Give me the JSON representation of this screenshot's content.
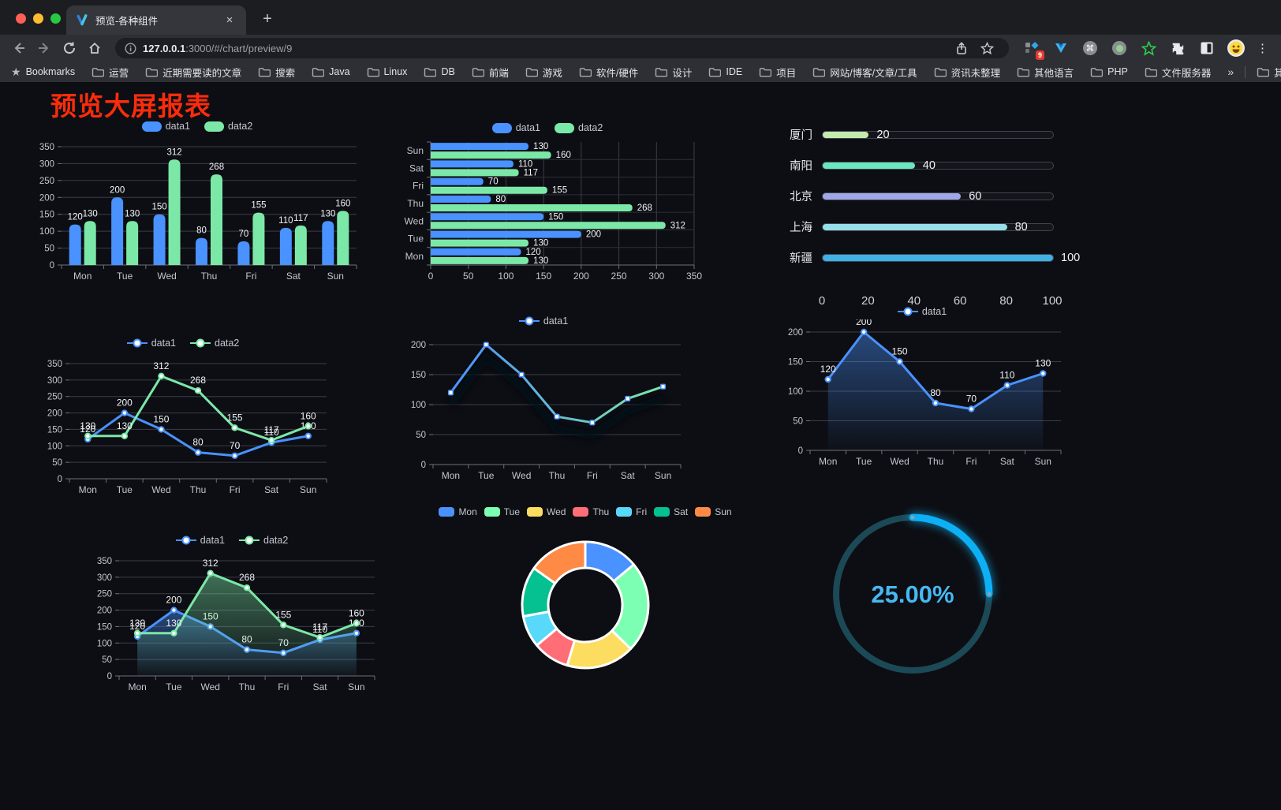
{
  "browser": {
    "tab_title": "预览-各种组件",
    "tab_close": "×",
    "new_tab": "+",
    "url_host": "127.0.0.1",
    "url_rest": ":3000/#/chart/preview/9",
    "extension_badge": "9",
    "bookmarks_label": "Bookmarks",
    "bookmarks": [
      "运营",
      "近期需要读的文章",
      "搜索",
      "Java",
      "Linux",
      "DB",
      "前端",
      "游戏",
      "软件/硬件",
      "设计",
      "IDE",
      "项目",
      "网站/博客/文章/工具",
      "资讯未整理",
      "其他语言",
      "PHP",
      "文件服务器"
    ],
    "overflow_chevron": "»",
    "other_bookmarks": "其他书签",
    "menu_dots": "⋮"
  },
  "page": {
    "title": "预览大屏报表",
    "title_color": "#fa2c0c"
  },
  "chart_data": [
    {
      "id": "bar-vertical",
      "type": "bar",
      "categories": [
        "Mon",
        "Tue",
        "Wed",
        "Thu",
        "Fri",
        "Sat",
        "Sun"
      ],
      "series": [
        {
          "name": "data1",
          "color": "#4992ff",
          "values": [
            120,
            200,
            150,
            80,
            70,
            110,
            130
          ]
        },
        {
          "name": "data2",
          "color": "#7ce8a8",
          "values": [
            130,
            130,
            312,
            268,
            155,
            117,
            160
          ]
        }
      ],
      "ylim": [
        0,
        350
      ],
      "yticks": [
        0,
        50,
        100,
        150,
        200,
        250,
        300,
        350
      ],
      "labels": true,
      "legend_position": "top",
      "grid": true
    },
    {
      "id": "bar-horizontal",
      "type": "hbar",
      "categories": [
        "Mon",
        "Tue",
        "Wed",
        "Thu",
        "Fri",
        "Sat",
        "Sun"
      ],
      "series": [
        {
          "name": "data1",
          "color": "#4992ff",
          "values": [
            120,
            200,
            150,
            80,
            70,
            110,
            130
          ]
        },
        {
          "name": "data2",
          "color": "#7ce8a8",
          "values": [
            130,
            130,
            312,
            268,
            155,
            117,
            160
          ]
        }
      ],
      "xlim": [
        0,
        350
      ],
      "xticks": [
        0,
        50,
        100,
        150,
        200,
        250,
        300,
        350
      ],
      "labels": true,
      "legend_position": "top",
      "grid": true
    },
    {
      "id": "city-progress",
      "type": "progress",
      "items": [
        {
          "label": "厦门",
          "value": 20,
          "color": "#c4ebad"
        },
        {
          "label": "南阳",
          "value": 40,
          "color": "#6be6c1"
        },
        {
          "label": "北京",
          "value": 60,
          "color": "#a0a7e6"
        },
        {
          "label": "上海",
          "value": 80,
          "color": "#96dee8"
        },
        {
          "label": "新疆",
          "value": 100,
          "color": "#3fb1e3"
        }
      ],
      "max": 100,
      "ticks": [
        0,
        20,
        40,
        60,
        80,
        100
      ]
    },
    {
      "id": "line-dual",
      "type": "line",
      "categories": [
        "Mon",
        "Tue",
        "Wed",
        "Thu",
        "Fri",
        "Sat",
        "Sun"
      ],
      "series": [
        {
          "name": "data1",
          "color": "#4992ff",
          "values": [
            120,
            200,
            150,
            80,
            70,
            110,
            130
          ]
        },
        {
          "name": "data2",
          "color": "#7ce8a8",
          "values": [
            130,
            130,
            312,
            268,
            155,
            117,
            160
          ]
        }
      ],
      "ylim": [
        0,
        350
      ],
      "yticks": [
        0,
        50,
        100,
        150,
        200,
        250,
        300,
        350
      ],
      "labels": true,
      "legend_position": "top",
      "grid": true
    },
    {
      "id": "line-gradient",
      "type": "line",
      "categories": [
        "Mon",
        "Tue",
        "Wed",
        "Thu",
        "Fri",
        "Sat",
        "Sun"
      ],
      "series": [
        {
          "name": "data1",
          "color": "#4992ff",
          "color_end": "#7ce8a8",
          "symbol": "rect",
          "shadow": true,
          "values": [
            120,
            200,
            150,
            80,
            70,
            110,
            130
          ]
        }
      ],
      "ylim": [
        0,
        200
      ],
      "yticks": [
        0,
        50,
        100,
        150,
        200
      ],
      "labels": false,
      "legend_position": "top",
      "grid": true
    },
    {
      "id": "line-area",
      "type": "line",
      "categories": [
        "Mon",
        "Tue",
        "Wed",
        "Thu",
        "Fri",
        "Sat",
        "Sun"
      ],
      "series": [
        {
          "name": "data1",
          "color": "#4992ff",
          "area": true,
          "values": [
            120,
            200,
            150,
            80,
            70,
            110,
            130
          ]
        }
      ],
      "ylim": [
        0,
        200
      ],
      "yticks": [
        0,
        50,
        100,
        150,
        200
      ],
      "labels": true,
      "legend_position": "top",
      "grid": true
    },
    {
      "id": "line-dual-area",
      "type": "line",
      "categories": [
        "Mon",
        "Tue",
        "Wed",
        "Thu",
        "Fri",
        "Sat",
        "Sun"
      ],
      "series": [
        {
          "name": "data1",
          "color": "#4992ff",
          "area": true,
          "values": [
            120,
            200,
            150,
            80,
            70,
            110,
            130
          ]
        },
        {
          "name": "data2",
          "color": "#7ce8a8",
          "area": true,
          "values": [
            130,
            130,
            312,
            268,
            155,
            117,
            160
          ]
        }
      ],
      "ylim": [
        0,
        350
      ],
      "yticks": [
        0,
        50,
        100,
        150,
        200,
        250,
        300,
        350
      ],
      "labels": true,
      "legend_position": "top",
      "grid": true
    },
    {
      "id": "week-donut",
      "type": "pie",
      "categories": [
        "Mon",
        "Tue",
        "Wed",
        "Thu",
        "Fri",
        "Sat",
        "Sun"
      ],
      "values": [
        120,
        200,
        150,
        80,
        70,
        110,
        130
      ],
      "colors": [
        "#4992ff",
        "#7cffb2",
        "#fddd60",
        "#ff6e76",
        "#58d9f9",
        "#05c091",
        "#ff8a45"
      ],
      "legend_position": "top"
    },
    {
      "id": "percent-gauge",
      "type": "gauge",
      "value": 25,
      "label": "25.00%",
      "color": "#0db0f5",
      "track_color": "#1c4956",
      "text_color": "#46b8f2"
    }
  ]
}
